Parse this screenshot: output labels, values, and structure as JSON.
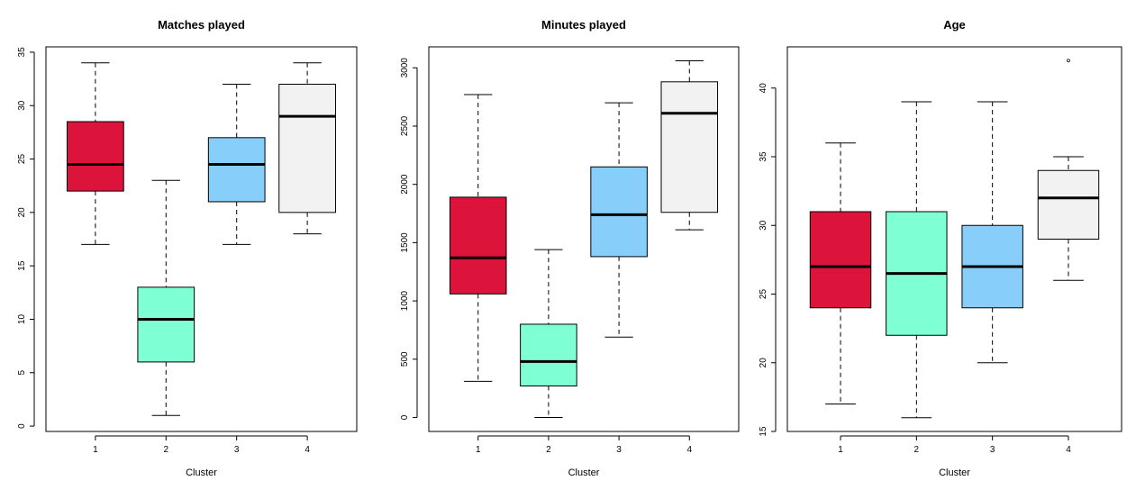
{
  "chart_data": [
    {
      "type": "box",
      "title": "Matches played",
      "xlabel": "Cluster",
      "ylabel": "",
      "categories": [
        "1",
        "2",
        "3",
        "4"
      ],
      "yticks": [
        0,
        5,
        10,
        15,
        20,
        25,
        30,
        35
      ],
      "ylim": [
        -0.5,
        35.5
      ],
      "boxes": [
        {
          "min": 17,
          "q1": 22,
          "median": 24.5,
          "q3": 28.5,
          "max": 34,
          "outliers": []
        },
        {
          "min": 1,
          "q1": 6,
          "median": 10,
          "q3": 13,
          "max": 23,
          "outliers": []
        },
        {
          "min": 17,
          "q1": 21,
          "median": 24.5,
          "q3": 27,
          "max": 32,
          "outliers": []
        },
        {
          "min": 18,
          "q1": 20,
          "median": 29,
          "q3": 32,
          "max": 34,
          "outliers": []
        }
      ]
    },
    {
      "type": "box",
      "title": "Minutes played",
      "xlabel": "Cluster",
      "ylabel": "",
      "categories": [
        "1",
        "2",
        "3",
        "4"
      ],
      "yticks": [
        0,
        500,
        1000,
        1500,
        2000,
        2500,
        3000
      ],
      "ylim": [
        -120,
        3180
      ],
      "boxes": [
        {
          "min": 310,
          "q1": 1060,
          "median": 1370,
          "q3": 1890,
          "max": 2770,
          "outliers": []
        },
        {
          "min": 0,
          "q1": 270,
          "median": 480,
          "q3": 800,
          "max": 1440,
          "outliers": []
        },
        {
          "min": 690,
          "q1": 1380,
          "median": 1740,
          "q3": 2150,
          "max": 2700,
          "outliers": []
        },
        {
          "min": 1610,
          "q1": 1760,
          "median": 2610,
          "q3": 2880,
          "max": 3060,
          "outliers": []
        }
      ]
    },
    {
      "type": "box",
      "title": "Age",
      "xlabel": "Cluster",
      "ylabel": "",
      "categories": [
        "1",
        "2",
        "3",
        "4"
      ],
      "yticks": [
        15,
        20,
        25,
        30,
        35,
        40
      ],
      "ylim": [
        15,
        43
      ],
      "boxes": [
        {
          "min": 17,
          "q1": 24,
          "median": 27,
          "q3": 31,
          "max": 36,
          "outliers": []
        },
        {
          "min": 16,
          "q1": 22,
          "median": 26.5,
          "q3": 31,
          "max": 39,
          "outliers": []
        },
        {
          "min": 20,
          "q1": 24,
          "median": 27,
          "q3": 30,
          "max": 39,
          "outliers": []
        },
        {
          "min": 26,
          "q1": 29,
          "median": 32,
          "q3": 34,
          "max": 35,
          "outliers": [
            42
          ]
        }
      ]
    }
  ],
  "colors": [
    "#DC143C",
    "#7FFFD4",
    "#87CEFA",
    "#F2F2F2"
  ],
  "grid": false,
  "legend": "none"
}
